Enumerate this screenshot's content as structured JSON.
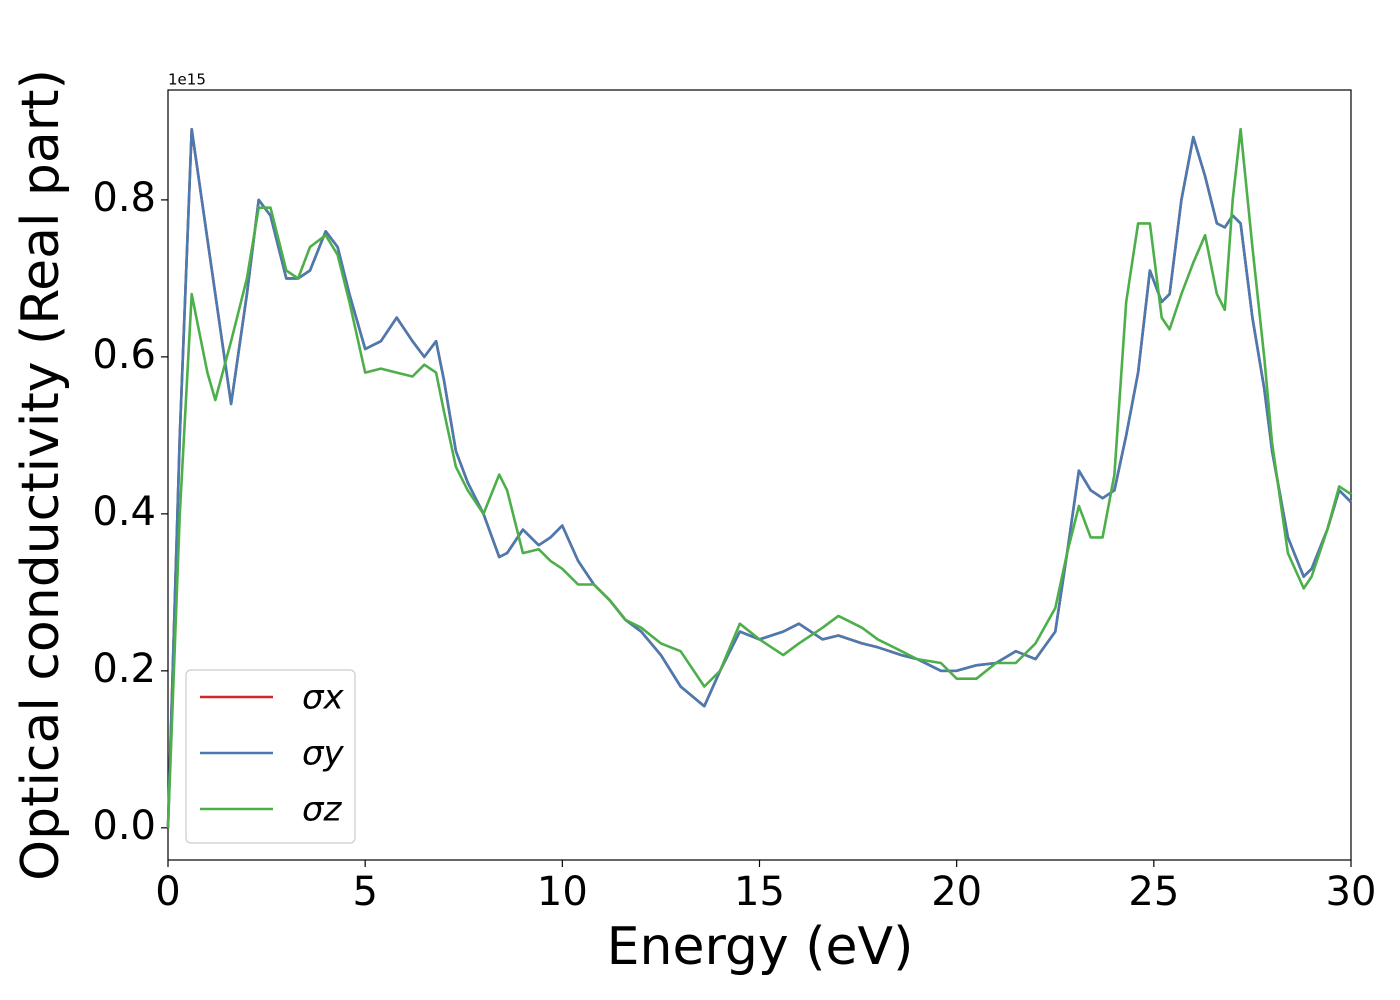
{
  "chart_data": {
    "type": "line",
    "xlabel": "Energy (eV)",
    "ylabel": "Optical conductivity (Real part)",
    "offset_label": "1e15",
    "x": [
      0,
      0.3,
      0.6,
      1.0,
      1.2,
      1.6,
      2.0,
      2.3,
      2.6,
      3.0,
      3.3,
      3.6,
      4.0,
      4.3,
      4.6,
      5.0,
      5.4,
      5.8,
      6.2,
      6.5,
      6.8,
      7.0,
      7.3,
      7.6,
      8.0,
      8.4,
      8.6,
      9.0,
      9.4,
      9.7,
      10.0,
      10.4,
      10.8,
      11.2,
      11.6,
      12.0,
      12.5,
      13.0,
      13.6,
      14.0,
      14.5,
      15.0,
      15.6,
      16.0,
      16.6,
      17.0,
      17.6,
      18.0,
      18.6,
      19.0,
      19.6,
      20.0,
      20.5,
      21.0,
      21.5,
      22.0,
      22.5,
      22.8,
      23.1,
      23.4,
      23.7,
      24.0,
      24.3,
      24.6,
      24.9,
      25.2,
      25.4,
      25.7,
      26.0,
      26.3,
      26.6,
      26.8,
      27.0,
      27.2,
      27.5,
      27.8,
      28.0,
      28.4,
      28.8,
      29.0,
      29.4,
      29.7,
      30.0
    ],
    "series": [
      {
        "name": "σx",
        "color": "#d62728",
        "values": [
          0.0,
          0.5,
          0.89,
          0.75,
          0.68,
          0.54,
          0.68,
          0.8,
          0.78,
          0.7,
          0.7,
          0.71,
          0.76,
          0.74,
          0.68,
          0.61,
          0.62,
          0.65,
          0.62,
          0.6,
          0.62,
          0.57,
          0.48,
          0.44,
          0.4,
          0.345,
          0.35,
          0.38,
          0.36,
          0.37,
          0.385,
          0.34,
          0.31,
          0.29,
          0.265,
          0.25,
          0.22,
          0.18,
          0.155,
          0.2,
          0.25,
          0.24,
          0.25,
          0.26,
          0.24,
          0.245,
          0.235,
          0.23,
          0.22,
          0.215,
          0.2,
          0.2,
          0.207,
          0.21,
          0.225,
          0.215,
          0.25,
          0.35,
          0.455,
          0.43,
          0.42,
          0.43,
          0.5,
          0.58,
          0.71,
          0.67,
          0.68,
          0.8,
          0.88,
          0.83,
          0.77,
          0.765,
          0.78,
          0.77,
          0.65,
          0.56,
          0.48,
          0.37,
          0.32,
          0.33,
          0.38,
          0.43,
          0.415
        ]
      },
      {
        "name": "σy",
        "color": "#4a7bb0",
        "values": [
          0.0,
          0.5,
          0.89,
          0.75,
          0.68,
          0.54,
          0.68,
          0.8,
          0.78,
          0.7,
          0.7,
          0.71,
          0.76,
          0.74,
          0.68,
          0.61,
          0.62,
          0.65,
          0.62,
          0.6,
          0.62,
          0.57,
          0.48,
          0.44,
          0.4,
          0.345,
          0.35,
          0.38,
          0.36,
          0.37,
          0.385,
          0.34,
          0.31,
          0.29,
          0.265,
          0.25,
          0.22,
          0.18,
          0.155,
          0.2,
          0.25,
          0.24,
          0.25,
          0.26,
          0.24,
          0.245,
          0.235,
          0.23,
          0.22,
          0.215,
          0.2,
          0.2,
          0.207,
          0.21,
          0.225,
          0.215,
          0.25,
          0.35,
          0.455,
          0.43,
          0.42,
          0.43,
          0.5,
          0.58,
          0.71,
          0.67,
          0.68,
          0.8,
          0.88,
          0.83,
          0.77,
          0.765,
          0.78,
          0.77,
          0.65,
          0.56,
          0.48,
          0.37,
          0.32,
          0.33,
          0.38,
          0.43,
          0.415
        ]
      },
      {
        "name": "σz",
        "color": "#4daf4a",
        "values": [
          0.0,
          0.4,
          0.68,
          0.58,
          0.545,
          0.62,
          0.7,
          0.79,
          0.79,
          0.71,
          0.7,
          0.74,
          0.755,
          0.73,
          0.67,
          0.58,
          0.585,
          0.58,
          0.575,
          0.59,
          0.58,
          0.53,
          0.46,
          0.43,
          0.4,
          0.45,
          0.43,
          0.35,
          0.355,
          0.34,
          0.33,
          0.31,
          0.31,
          0.29,
          0.265,
          0.255,
          0.235,
          0.225,
          0.18,
          0.2,
          0.26,
          0.24,
          0.22,
          0.235,
          0.255,
          0.27,
          0.255,
          0.24,
          0.225,
          0.215,
          0.21,
          0.19,
          0.19,
          0.21,
          0.21,
          0.235,
          0.28,
          0.35,
          0.41,
          0.37,
          0.37,
          0.45,
          0.67,
          0.77,
          0.77,
          0.65,
          0.635,
          0.68,
          0.72,
          0.755,
          0.68,
          0.66,
          0.8,
          0.89,
          0.74,
          0.6,
          0.49,
          0.35,
          0.305,
          0.32,
          0.38,
          0.435,
          0.425
        ]
      }
    ],
    "xlim": [
      0,
      30
    ],
    "xticks": [
      0,
      5,
      10,
      15,
      20,
      25,
      30
    ],
    "ylim": [
      -0.041,
      0.94
    ],
    "yticks": [
      {
        "value": 0,
        "label": "0.0"
      },
      0.2,
      0.4,
      0.6,
      0.8
    ],
    "legend": "lower left",
    "grid": false
  }
}
